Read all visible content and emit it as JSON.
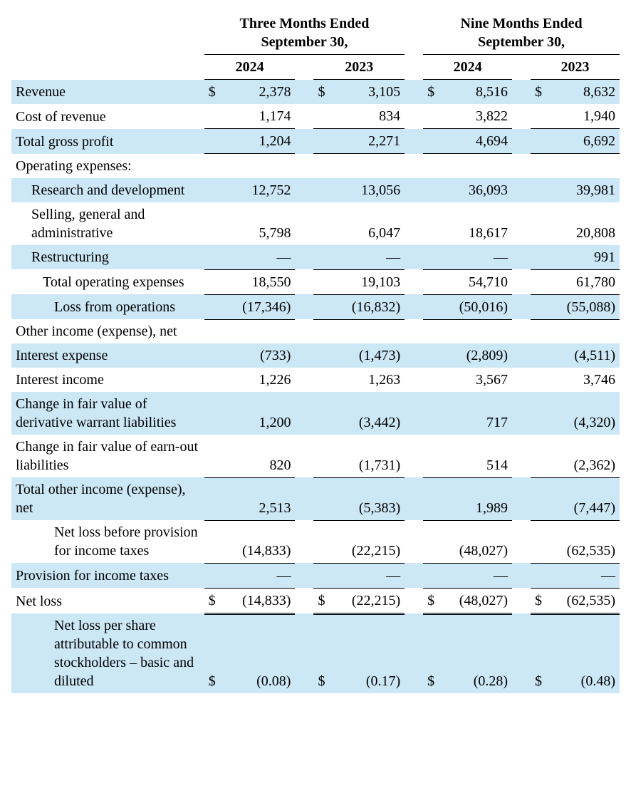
{
  "table": {
    "background_color": "#ffffff",
    "shade_color": "#cce7f5",
    "text_color": "#000000",
    "font_family": "Times New Roman",
    "body_fontsize": 20,
    "header": {
      "group1": "Three Months Ended September 30,",
      "group2": "Nine Months Ended September 30,",
      "cols": [
        "2024",
        "2023",
        "2024",
        "2023"
      ]
    },
    "rows": [
      {
        "label": "Revenue",
        "indent": 0,
        "shade": true,
        "currency": true,
        "vals": [
          "2,378",
          "3,105",
          "8,516",
          "8,632"
        ],
        "underline": false
      },
      {
        "label": "Cost of revenue",
        "indent": 0,
        "shade": false,
        "currency": false,
        "vals": [
          "1,174",
          "834",
          "3,822",
          "1,940"
        ],
        "underline": true
      },
      {
        "label": "Total gross profit",
        "indent": 0,
        "shade": true,
        "currency": false,
        "vals": [
          "1,204",
          "2,271",
          "4,694",
          "6,692"
        ],
        "underline": true
      },
      {
        "label": "Operating expenses:",
        "indent": 0,
        "shade": false,
        "currency": false,
        "vals": [
          "",
          "",
          "",
          ""
        ],
        "underline": false
      },
      {
        "label": "Research and development",
        "indent": 1,
        "shade": true,
        "currency": false,
        "vals": [
          "12,752",
          "13,056",
          "36,093",
          "39,981"
        ],
        "underline": false
      },
      {
        "label": "Selling, general and administrative",
        "indent": 1,
        "shade": false,
        "currency": false,
        "vals": [
          "5,798",
          "6,047",
          "18,617",
          "20,808"
        ],
        "underline": false
      },
      {
        "label": "Restructuring",
        "indent": 1,
        "shade": true,
        "currency": false,
        "vals": [
          "—",
          "—",
          "—",
          "991"
        ],
        "underline": true
      },
      {
        "label": "Total operating expenses",
        "indent": 2,
        "shade": false,
        "currency": false,
        "vals": [
          "18,550",
          "19,103",
          "54,710",
          "61,780"
        ],
        "underline": true
      },
      {
        "label": "Loss from operations",
        "indent": 3,
        "shade": true,
        "currency": false,
        "vals": [
          "(17,346)",
          "(16,832)",
          "(50,016)",
          "(55,088)"
        ],
        "underline": true
      },
      {
        "label": "Other income (expense), net",
        "indent": 0,
        "shade": false,
        "currency": false,
        "vals": [
          "",
          "",
          "",
          ""
        ],
        "underline": false
      },
      {
        "label": "Interest expense",
        "indent": 0,
        "shade": true,
        "currency": false,
        "vals": [
          "(733)",
          "(1,473)",
          "(2,809)",
          "(4,511)"
        ],
        "underline": false
      },
      {
        "label": "Interest income",
        "indent": 0,
        "shade": false,
        "currency": false,
        "vals": [
          "1,226",
          "1,263",
          "3,567",
          "3,746"
        ],
        "underline": false
      },
      {
        "label": "Change in fair value of derivative warrant liabilities",
        "indent": 0,
        "shade": true,
        "currency": false,
        "vals": [
          "1,200",
          "(3,442)",
          "717",
          "(4,320)"
        ],
        "underline": false
      },
      {
        "label": "Change in fair value of earn-out liabilities",
        "indent": 0,
        "shade": false,
        "currency": false,
        "vals": [
          "820",
          "(1,731)",
          "514",
          "(2,362)"
        ],
        "underline": true
      },
      {
        "label": "Total other income (expense), net",
        "indent": 0,
        "shade": true,
        "currency": false,
        "vals": [
          "2,513",
          "(5,383)",
          "1,989",
          "(7,447)"
        ],
        "underline": true
      },
      {
        "label": "Net loss before provision for income taxes",
        "indent": 3,
        "shade": false,
        "currency": false,
        "vals": [
          "(14,833)",
          "(22,215)",
          "(48,027)",
          "(62,535)"
        ],
        "underline": true
      },
      {
        "label": "Provision for income taxes",
        "indent": 0,
        "shade": true,
        "currency": false,
        "vals": [
          "—",
          "—",
          "—",
          "—"
        ],
        "underline": true
      },
      {
        "label": "Net loss",
        "indent": 0,
        "shade": false,
        "currency": true,
        "vals": [
          "(14,833)",
          "(22,215)",
          "(48,027)",
          "(62,535)"
        ],
        "double": true
      },
      {
        "label": "Net loss per share attributable to common stockholders – basic and diluted",
        "indent": 3,
        "shade": true,
        "currency": true,
        "vals": [
          "(0.08)",
          "(0.17)",
          "(0.28)",
          "(0.48)"
        ],
        "underline": false
      }
    ]
  }
}
